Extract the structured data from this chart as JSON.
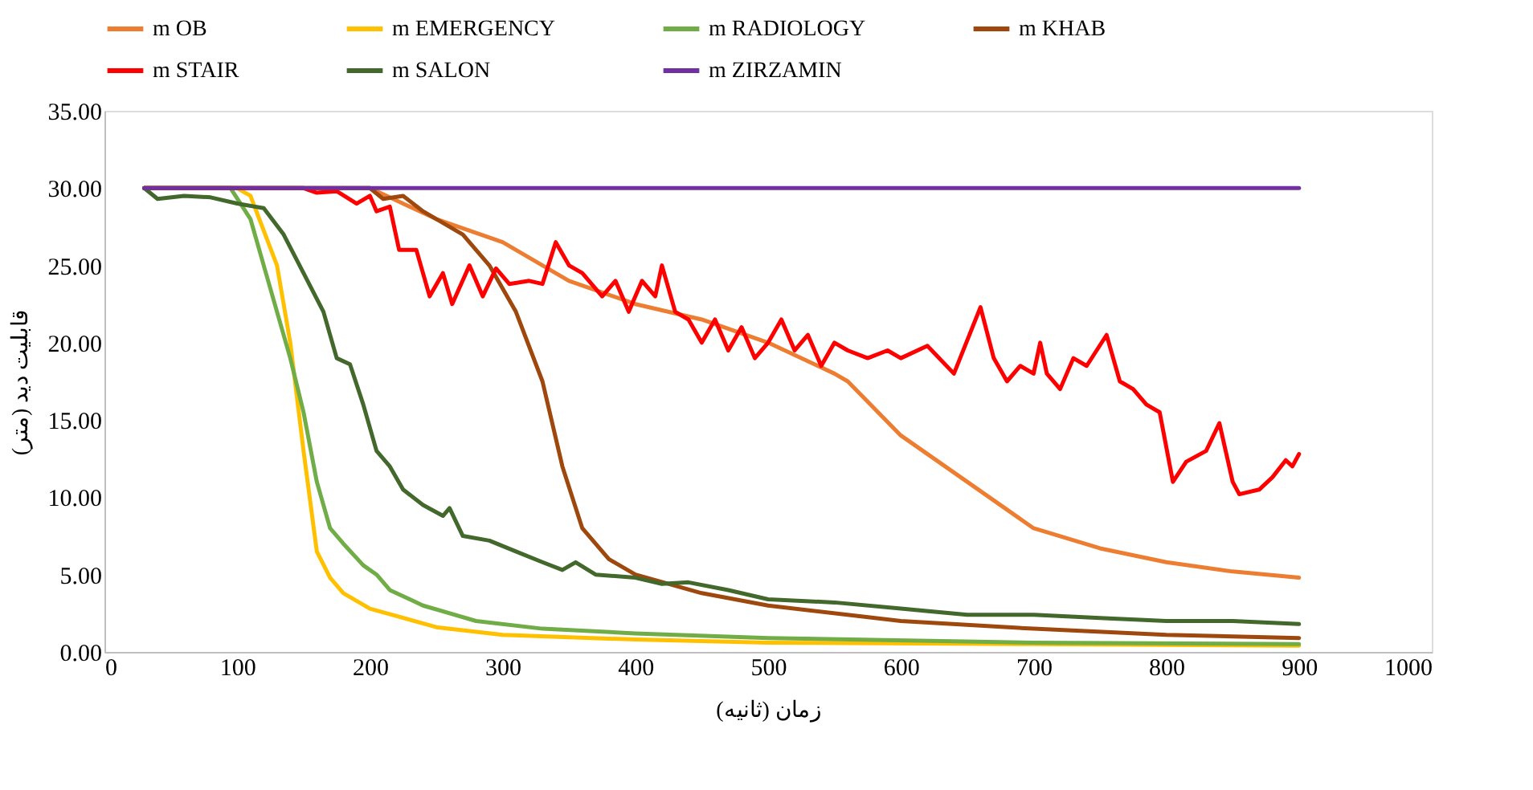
{
  "chart_data": {
    "type": "line",
    "xlabel": "زمان (ثانیه)",
    "ylabel": "قابلیت دید (متر)",
    "xlim": [
      0,
      1000
    ],
    "xticks": [
      0,
      100,
      200,
      300,
      400,
      500,
      600,
      700,
      800,
      900,
      1000
    ],
    "ylim": [
      0,
      35
    ],
    "yticks": [
      {
        "value": 0,
        "label": "0.00"
      },
      {
        "value": 5,
        "label": "5.00"
      },
      {
        "value": 10,
        "label": "10.00"
      },
      {
        "value": 15,
        "label": "15.00"
      },
      {
        "value": 20,
        "label": "20.00"
      },
      {
        "value": 25,
        "label": "25.00"
      },
      {
        "value": 30,
        "label": "30.00"
      },
      {
        "value": 35,
        "label": "35.00"
      }
    ],
    "grid": false,
    "legend": "top",
    "marker": "none",
    "line_style": "solid",
    "series": [
      {
        "name": "m OB",
        "color": "#ed7d31",
        "x": [
          30,
          100,
          200,
          250,
          300,
          350,
          400,
          450,
          500,
          550,
          560,
          600,
          650,
          700,
          750,
          800,
          850,
          900
        ],
        "values": [
          30,
          30,
          30,
          28,
          26.5,
          24,
          22.5,
          21.5,
          20,
          18,
          17.5,
          14,
          11,
          8,
          6.7,
          5.8,
          5.2,
          4.8
        ]
      },
      {
        "name": "m EMERGENCY",
        "color": "#ffc000",
        "x": [
          30,
          100,
          110,
          130,
          140,
          150,
          160,
          170,
          180,
          200,
          250,
          300,
          400,
          500,
          700,
          900
        ],
        "values": [
          30,
          30,
          29.5,
          25,
          20,
          13,
          6.5,
          4.8,
          3.8,
          2.8,
          1.6,
          1.1,
          0.8,
          0.6,
          0.5,
          0.4
        ]
      },
      {
        "name": "m RADIOLOGY",
        "color": "#70ad47",
        "x": [
          30,
          95,
          110,
          120,
          140,
          150,
          160,
          170,
          180,
          195,
          205,
          215,
          240,
          280,
          330,
          400,
          500,
          700,
          900
        ],
        "values": [
          30,
          30,
          28,
          25,
          19,
          15.5,
          11,
          8,
          7,
          5.6,
          5,
          4,
          3,
          2,
          1.5,
          1.2,
          0.9,
          0.6,
          0.5
        ]
      },
      {
        "name": "m KHAB",
        "color": "#9e480e",
        "x": [
          30,
          200,
          210,
          225,
          240,
          270,
          290,
          310,
          330,
          345,
          360,
          380,
          400,
          450,
          500,
          600,
          700,
          800,
          900
        ],
        "values": [
          30,
          30,
          29.3,
          29.5,
          28.5,
          27,
          25,
          22,
          17.5,
          12,
          8,
          6,
          5,
          3.8,
          3,
          2,
          1.5,
          1.1,
          0.9
        ]
      },
      {
        "name": "m STAIR",
        "color": "#ff0000",
        "x": [
          30,
          100,
          150,
          160,
          175,
          190,
          200,
          205,
          215,
          222,
          235,
          245,
          255,
          262,
          275,
          285,
          295,
          305,
          320,
          330,
          340,
          350,
          360,
          375,
          385,
          395,
          405,
          415,
          420,
          430,
          440,
          450,
          460,
          470,
          480,
          490,
          500,
          510,
          520,
          530,
          540,
          550,
          560,
          575,
          590,
          600,
          620,
          640,
          660,
          670,
          680,
          690,
          700,
          705,
          710,
          720,
          730,
          740,
          755,
          765,
          775,
          785,
          795,
          805,
          815,
          830,
          840,
          850,
          855,
          870,
          880,
          890,
          895,
          900
        ],
        "values": [
          30,
          30,
          30,
          29.7,
          29.8,
          29,
          29.5,
          28.5,
          28.8,
          26,
          26,
          23,
          24.5,
          22.5,
          25,
          23,
          24.8,
          23.8,
          24,
          23.8,
          26.5,
          25,
          24.5,
          23,
          24,
          22,
          24,
          23,
          25,
          22,
          21.5,
          20,
          21.5,
          19.5,
          21,
          19,
          20,
          21.5,
          19.5,
          20.5,
          18.5,
          20,
          19.5,
          19,
          19.5,
          19,
          19.8,
          18,
          22.3,
          19,
          17.5,
          18.5,
          18,
          20,
          18,
          17,
          19,
          18.5,
          20.5,
          17.5,
          17,
          16,
          15.5,
          11,
          12.3,
          13,
          14.8,
          11,
          10.2,
          10.5,
          11.3,
          12.4,
          12,
          12.8
        ]
      },
      {
        "name": "m SALON",
        "color": "#43682b",
        "x": [
          30,
          40,
          60,
          80,
          100,
          120,
          135,
          150,
          165,
          175,
          185,
          195,
          205,
          215,
          225,
          240,
          255,
          260,
          270,
          290,
          310,
          330,
          345,
          355,
          370,
          400,
          420,
          440,
          470,
          500,
          550,
          600,
          650,
          700,
          750,
          800,
          850,
          900
        ],
        "values": [
          30,
          29.3,
          29.5,
          29.4,
          29,
          28.7,
          27,
          24.5,
          22,
          19,
          18.6,
          16,
          13,
          12,
          10.5,
          9.5,
          8.8,
          9.3,
          7.5,
          7.2,
          6.5,
          5.8,
          5.3,
          5.8,
          5,
          4.8,
          4.4,
          4.5,
          4,
          3.4,
          3.2,
          2.8,
          2.4,
          2.4,
          2.2,
          2,
          2,
          1.8
        ]
      },
      {
        "name": "m ZIRZAMIN",
        "color": "#7030a0",
        "x": [
          30,
          900
        ],
        "values": [
          30,
          30
        ]
      }
    ]
  }
}
